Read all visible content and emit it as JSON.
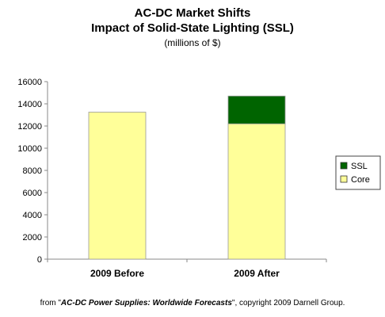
{
  "chart_data": {
    "type": "bar",
    "title": "AC-DC Market Shifts",
    "subtitle": "Impact of Solid-State Lighting (SSL)",
    "units": "(millions of $)",
    "categories": [
      "2009 Before",
      "2009 After"
    ],
    "stacked": true,
    "series": [
      {
        "name": "Core",
        "color": "#FFFF99",
        "values": [
          13250,
          12200
        ]
      },
      {
        "name": "SSL",
        "color": "#006400",
        "values": [
          0,
          2500
        ]
      }
    ],
    "ylim": [
      0,
      16000
    ],
    "yticks": [
      0,
      2000,
      4000,
      6000,
      8000,
      10000,
      12000,
      14000,
      16000
    ],
    "grid": false,
    "legend": "right"
  },
  "footer": {
    "prefix": "from \"",
    "source": "AC-DC Power Supplies: Worldwide Forecasts",
    "suffix": "\", copyright 2009 Darnell Group."
  }
}
